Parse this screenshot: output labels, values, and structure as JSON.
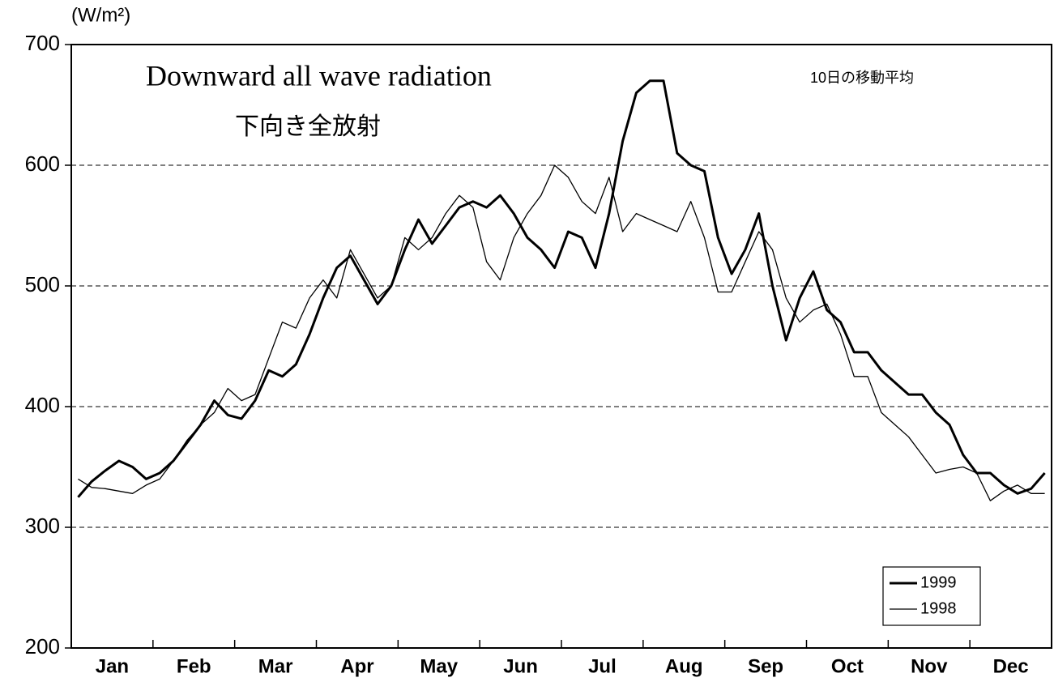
{
  "chart_data": {
    "type": "line",
    "title": "Downward all wave radiation",
    "subtitle": "下向き全放射",
    "annotation": "10日の移動平均",
    "y_label": "(W/m²)",
    "categories": [
      null,
      null,
      "Jan",
      null,
      null,
      null,
      null,
      null,
      "Feb",
      null,
      null,
      null,
      null,
      null,
      "Mar",
      null,
      null,
      null,
      null,
      null,
      "Apr",
      null,
      null,
      null,
      null,
      null,
      "May",
      null,
      null,
      null,
      null,
      null,
      "Jun",
      null,
      null,
      null,
      null,
      null,
      "Jul",
      null,
      null,
      null,
      null,
      null,
      "Aug",
      null,
      null,
      null,
      null,
      null,
      "Sep",
      null,
      null,
      null,
      null,
      null,
      "Oct",
      null,
      null,
      null,
      null,
      null,
      "Nov",
      null,
      null,
      null,
      null,
      null,
      "Dec",
      null,
      null,
      null
    ],
    "series": [
      {
        "name": "1999",
        "color": "#000000",
        "width": 3,
        "values": [
          325,
          338,
          347,
          355,
          350,
          340,
          345,
          355,
          370,
          385,
          405,
          393,
          390,
          405,
          430,
          425,
          435,
          460,
          490,
          515,
          525,
          505,
          485,
          500,
          530,
          555,
          535,
          550,
          565,
          570,
          565,
          575,
          560,
          540,
          530,
          515,
          545,
          540,
          515,
          560,
          620,
          660,
          670,
          670,
          610,
          600,
          595,
          540,
          510,
          530,
          560,
          500,
          455,
          490,
          512,
          480,
          470,
          445,
          445,
          430,
          420,
          410,
          410,
          395,
          385,
          360,
          345,
          345,
          335,
          328,
          332,
          345
        ]
      },
      {
        "name": "1998",
        "color": "#000000",
        "width": 1.3,
        "values": [
          340,
          333,
          332,
          330,
          328,
          335,
          340,
          355,
          372,
          385,
          395,
          415,
          405,
          410,
          440,
          470,
          465,
          490,
          505,
          490,
          530,
          510,
          490,
          500,
          540,
          530,
          540,
          560,
          575,
          565,
          520,
          505,
          540,
          560,
          575,
          600,
          590,
          570,
          560,
          590,
          545,
          560,
          555,
          550,
          545,
          570,
          540,
          495,
          495,
          520,
          545,
          530,
          490,
          470,
          480,
          485,
          460,
          425,
          425,
          395,
          385,
          375,
          360,
          345,
          348,
          350,
          345,
          322,
          330,
          335,
          328,
          328
        ]
      }
    ],
    "ylim": [
      200,
      700
    ],
    "yticks": [
      200,
      300,
      400,
      500,
      600,
      700
    ],
    "grid": true,
    "legend": "lower right"
  }
}
